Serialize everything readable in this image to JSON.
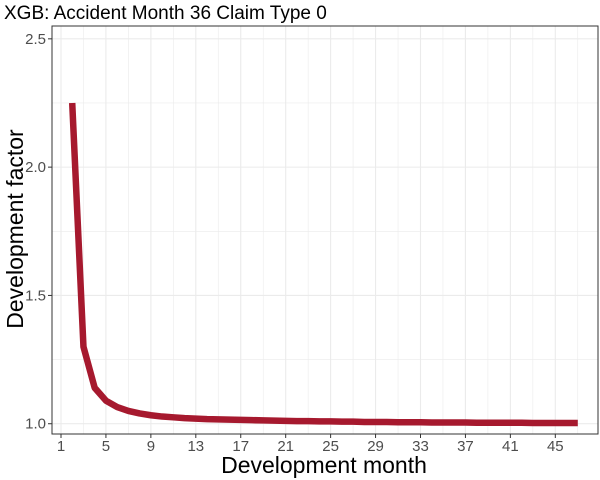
{
  "chart_data": {
    "type": "line",
    "title": "XGB: Accident Month 36 Claim Type 0",
    "xlabel": "Development month",
    "ylabel": "Development factor",
    "xlim": [
      0.2,
      48.8
    ],
    "ylim": [
      0.96,
      2.55
    ],
    "x_ticks": [
      1,
      5,
      9,
      13,
      17,
      21,
      25,
      29,
      33,
      37,
      41,
      45
    ],
    "x_minor_ticks": [
      3,
      7,
      11,
      15,
      19,
      23,
      27,
      31,
      35,
      39,
      43,
      47
    ],
    "y_ticks": [
      1.0,
      1.5,
      2.0,
      2.5
    ],
    "y_tick_labels": [
      "1.0",
      "1.5",
      "2.0",
      "2.5"
    ],
    "y_minor_ticks": [
      1.25,
      1.75,
      2.25
    ],
    "grid": true,
    "legend": "none",
    "colors": {
      "line": "#a6192e",
      "grid": "#ebebeb",
      "panel_border": "#333333",
      "tick_text": "#4d4d4d"
    },
    "series": [
      {
        "x": [
          2,
          3,
          4,
          5,
          6,
          7,
          8,
          9,
          10,
          11,
          12,
          13,
          14,
          15,
          16,
          17,
          18,
          19,
          20,
          21,
          22,
          23,
          24,
          25,
          26,
          27,
          28,
          29,
          30,
          31,
          32,
          33,
          34,
          35,
          36,
          37,
          38,
          39,
          40,
          41,
          42,
          43,
          44,
          45,
          46,
          47
        ],
        "values": [
          2.25,
          1.3,
          1.14,
          1.09,
          1.065,
          1.05,
          1.04,
          1.033,
          1.028,
          1.025,
          1.022,
          1.02,
          1.018,
          1.017,
          1.016,
          1.015,
          1.014,
          1.013,
          1.012,
          1.011,
          1.01,
          1.01,
          1.009,
          1.009,
          1.008,
          1.008,
          1.007,
          1.007,
          1.007,
          1.006,
          1.006,
          1.006,
          1.005,
          1.005,
          1.005,
          1.005,
          1.004,
          1.004,
          1.004,
          1.004,
          1.004,
          1.003,
          1.003,
          1.003,
          1.003,
          1.003
        ]
      }
    ]
  }
}
